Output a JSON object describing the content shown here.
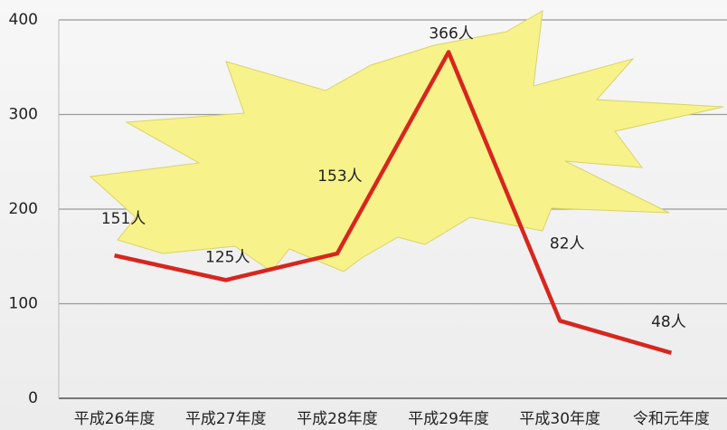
{
  "chart_data": {
    "type": "line",
    "categories": [
      "平成26年度",
      "平成27年度",
      "平成28年度",
      "平成29年度",
      "平成30年度",
      "令和元年度"
    ],
    "values": [
      151,
      125,
      153,
      366,
      82,
      48
    ],
    "value_labels": [
      "151人",
      "125人",
      "153人",
      "366人",
      "82人",
      "48人"
    ],
    "color": "#d7261e",
    "ylim": [
      0,
      400
    ],
    "yticks": [
      0,
      100,
      200,
      300,
      400
    ],
    "grid": true
  }
}
